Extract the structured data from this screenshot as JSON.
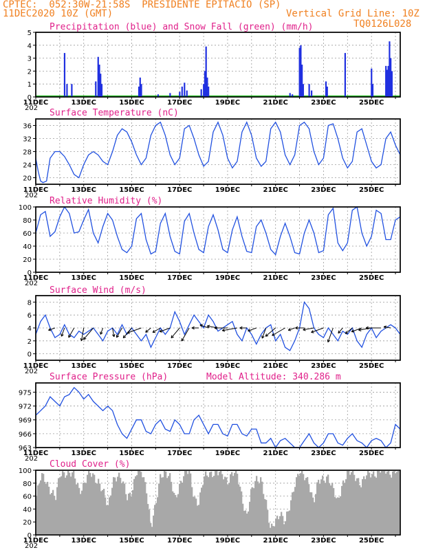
{
  "header": {
    "left1": "CPTEC:  052:30W-21:58S  PRESIDENTE EPITACIO (SP)",
    "left2": "11DEC2020 10Z (GMT)",
    "right2": "Vertical Grid Line: 10Z",
    "right3": "TQ0126L028"
  },
  "x_labels": [
    "11DEC",
    "13DEC",
    "15DEC",
    "17DEC",
    "19DEC",
    "21DEC",
    "23DEC",
    "25DEC"
  ],
  "year_label": "202",
  "colors": {
    "precip": "#2030e0",
    "snow": "#00b000",
    "line": "#2050e0",
    "cloud": "#a8a8a8",
    "title": "#e0208a",
    "header": "#f08020"
  },
  "chart_data": [
    {
      "type": "bar",
      "title": "Precipitation (blue) and Snow Fall (green) (mm/h)",
      "ylim": [
        0,
        5
      ],
      "yticks": [
        0,
        1,
        2,
        3,
        4,
        5
      ],
      "series": [
        {
          "name": "Precipitation",
          "values": [
            {
              "t": 1.2,
              "v": 3.4
            },
            {
              "t": 1.3,
              "v": 1.0
            },
            {
              "t": 1.5,
              "v": 1.0
            },
            {
              "t": 2.5,
              "v": 1.2
            },
            {
              "t": 2.6,
              "v": 3.1
            },
            {
              "t": 2.65,
              "v": 2.5
            },
            {
              "t": 2.7,
              "v": 1.8
            },
            {
              "t": 2.75,
              "v": 1.0
            },
            {
              "t": 4.3,
              "v": 0.8
            },
            {
              "t": 4.35,
              "v": 1.5
            },
            {
              "t": 4.4,
              "v": 1.0
            },
            {
              "t": 5.1,
              "v": 0.2
            },
            {
              "t": 5.6,
              "v": 0.3
            },
            {
              "t": 6.0,
              "v": 0.4
            },
            {
              "t": 6.1,
              "v": 0.8
            },
            {
              "t": 6.2,
              "v": 1.1
            },
            {
              "t": 6.3,
              "v": 0.5
            },
            {
              "t": 6.9,
              "v": 0.6
            },
            {
              "t": 7.0,
              "v": 1.0
            },
            {
              "t": 7.05,
              "v": 2.0
            },
            {
              "t": 7.1,
              "v": 3.9
            },
            {
              "t": 7.15,
              "v": 1.5
            },
            {
              "t": 7.2,
              "v": 0.8
            },
            {
              "t": 10.6,
              "v": 0.3
            },
            {
              "t": 10.7,
              "v": 0.2
            },
            {
              "t": 11.0,
              "v": 3.8
            },
            {
              "t": 11.05,
              "v": 4.0
            },
            {
              "t": 11.1,
              "v": 2.5
            },
            {
              "t": 11.15,
              "v": 1.0
            },
            {
              "t": 11.4,
              "v": 1.0
            },
            {
              "t": 11.5,
              "v": 0.5
            },
            {
              "t": 12.1,
              "v": 1.2
            },
            {
              "t": 12.15,
              "v": 0.8
            },
            {
              "t": 12.9,
              "v": 3.4
            },
            {
              "t": 14.0,
              "v": 2.2
            },
            {
              "t": 14.05,
              "v": 1.0
            },
            {
              "t": 14.6,
              "v": 2.4
            },
            {
              "t": 14.65,
              "v": 2.1
            },
            {
              "t": 14.7,
              "v": 2.4
            },
            {
              "t": 14.75,
              "v": 4.3
            },
            {
              "t": 14.8,
              "v": 3.0
            },
            {
              "t": 14.85,
              "v": 2.0
            }
          ]
        },
        {
          "name": "Snow Fall",
          "values": []
        }
      ]
    },
    {
      "type": "line",
      "title": "Surface Temperature (nC)",
      "ylim": [
        18,
        38
      ],
      "yticks": [
        20,
        24,
        28,
        32,
        36
      ],
      "x": [
        0,
        0.1,
        0.2,
        0.3,
        0.45,
        0.6,
        0.8,
        1.0,
        1.2,
        1.4,
        1.6,
        1.8,
        2.0,
        2.2,
        2.4,
        2.6,
        2.8,
        3.0,
        3.2,
        3.4,
        3.6,
        3.8,
        4.0,
        4.2,
        4.4,
        4.6,
        4.8,
        5.0,
        5.2,
        5.4,
        5.6,
        5.8,
        6.0,
        6.2,
        6.4,
        6.6,
        6.8,
        7.0,
        7.2,
        7.4,
        7.6,
        7.8,
        8.0,
        8.2,
        8.4,
        8.6,
        8.8,
        9.0,
        9.2,
        9.4,
        9.6,
        9.8,
        10.0,
        10.2,
        10.4,
        10.6,
        10.8,
        11.0,
        11.2,
        11.4,
        11.6,
        11.8,
        12.0,
        12.2,
        12.4,
        12.6,
        12.8,
        13.0,
        13.2,
        13.4,
        13.6,
        13.8,
        14.0,
        14.2,
        14.4,
        14.6,
        14.8,
        15.0,
        15.2
      ],
      "values": [
        26,
        22,
        19,
        18.5,
        19,
        26,
        28,
        28,
        26.5,
        24,
        21,
        20,
        24,
        27,
        28,
        27,
        25,
        24,
        28,
        33,
        35,
        34,
        31,
        27,
        24,
        26,
        33,
        36,
        37,
        33,
        27,
        24,
        26,
        35,
        36,
        32,
        27,
        23.5,
        25,
        34,
        37,
        33,
        26,
        23,
        25,
        34,
        37,
        33,
        26,
        23.5,
        25,
        35,
        37,
        34,
        27,
        24,
        27,
        36,
        37,
        35,
        28,
        24,
        26,
        36,
        36.5,
        32,
        26,
        23,
        25,
        34,
        35,
        30,
        25,
        23,
        24,
        32,
        34,
        30,
        27
      ],
      "xlabel_ticks": [
        "11DEC",
        "13DEC",
        "15DEC",
        "17DEC",
        "19DEC",
        "21DEC",
        "23DEC",
        "25DEC"
      ]
    },
    {
      "type": "line",
      "title": "Relative Humidity (%)",
      "ylim": [
        0,
        100
      ],
      "yticks": [
        0,
        20,
        40,
        60,
        80,
        100
      ],
      "x": [
        0,
        0.2,
        0.4,
        0.6,
        0.8,
        1.0,
        1.2,
        1.4,
        1.6,
        1.8,
        2.0,
        2.2,
        2.4,
        2.6,
        2.8,
        3.0,
        3.2,
        3.4,
        3.6,
        3.8,
        4.0,
        4.2,
        4.4,
        4.6,
        4.8,
        5.0,
        5.2,
        5.4,
        5.6,
        5.8,
        6.0,
        6.2,
        6.4,
        6.6,
        6.8,
        7.0,
        7.2,
        7.4,
        7.6,
        7.8,
        8.0,
        8.2,
        8.4,
        8.6,
        8.8,
        9.0,
        9.2,
        9.4,
        9.6,
        9.8,
        10.0,
        10.2,
        10.4,
        10.6,
        10.8,
        11.0,
        11.2,
        11.4,
        11.6,
        11.8,
        12.0,
        12.2,
        12.4,
        12.6,
        12.8,
        13.0,
        13.2,
        13.4,
        13.6,
        13.8,
        14.0,
        14.2,
        14.4,
        14.6,
        14.8,
        15.0,
        15.2
      ],
      "values": [
        60,
        88,
        93,
        55,
        62,
        85,
        100,
        90,
        60,
        62,
        80,
        96,
        60,
        45,
        70,
        90,
        80,
        55,
        35,
        30,
        40,
        82,
        90,
        50,
        28,
        32,
        75,
        90,
        55,
        32,
        28,
        78,
        90,
        60,
        35,
        30,
        70,
        88,
        65,
        35,
        30,
        65,
        85,
        55,
        32,
        30,
        70,
        80,
        60,
        35,
        27,
        55,
        75,
        55,
        30,
        28,
        60,
        80,
        60,
        30,
        33,
        88,
        98,
        45,
        33,
        45,
        95,
        100,
        60,
        40,
        55,
        95,
        90,
        50,
        50,
        80,
        85
      ],
      "xlabel_ticks": [
        "11DEC",
        "13DEC",
        "15DEC",
        "17DEC",
        "19DEC",
        "21DEC",
        "23DEC",
        "25DEC"
      ]
    },
    {
      "type": "line",
      "title": "Surface Wind (m/s)",
      "ylim": [
        -1,
        9
      ],
      "yticks": [
        0,
        2,
        4,
        6,
        8
      ],
      "x": [
        0,
        0.2,
        0.4,
        0.6,
        0.8,
        1.0,
        1.2,
        1.4,
        1.6,
        1.8,
        2.0,
        2.2,
        2.4,
        2.6,
        2.8,
        3.0,
        3.2,
        3.4,
        3.6,
        3.8,
        4.0,
        4.2,
        4.4,
        4.6,
        4.8,
        5.0,
        5.2,
        5.4,
        5.6,
        5.8,
        6.0,
        6.2,
        6.4,
        6.6,
        6.8,
        7.0,
        7.2,
        7.4,
        7.6,
        7.8,
        8.0,
        8.2,
        8.4,
        8.6,
        8.8,
        9.0,
        9.2,
        9.4,
        9.6,
        9.8,
        10.0,
        10.2,
        10.4,
        10.6,
        10.8,
        11.0,
        11.2,
        11.4,
        11.6,
        11.8,
        12.0,
        12.2,
        12.4,
        12.6,
        12.8,
        13.0,
        13.2,
        13.4,
        13.6,
        13.8,
        14.0,
        14.2,
        14.4,
        14.6,
        14.8,
        15.0,
        15.2
      ],
      "values": [
        3,
        5,
        6,
        4,
        2.5,
        3,
        4.5,
        3,
        2.5,
        3.5,
        3,
        3.5,
        4,
        3,
        2,
        3.5,
        4,
        3,
        4.5,
        3,
        4,
        3,
        2,
        3,
        1,
        2.5,
        4,
        3,
        4,
        6.5,
        5,
        3,
        4.5,
        6,
        5,
        4,
        6,
        5,
        3.5,
        4,
        4.5,
        5,
        3,
        2,
        4,
        3,
        1.5,
        3,
        4,
        4.5,
        2,
        3,
        1,
        0.5,
        2,
        4,
        8,
        7,
        4,
        3,
        2.5,
        4,
        3,
        2,
        3.5,
        3,
        4,
        2,
        1,
        3,
        4,
        2.5,
        3.5,
        4,
        4.5,
        4,
        3
      ],
      "xlabel_ticks": [
        "11DEC",
        "13DEC",
        "15DEC",
        "17DEC",
        "19DEC",
        "21DEC",
        "23DEC",
        "25DEC"
      ]
    },
    {
      "type": "line",
      "title": "Surface Pressure (hPa)",
      "annotation": "Model Altitude: 340.286 m",
      "ylim": [
        963,
        977
      ],
      "yticks": [
        963,
        966,
        969,
        972,
        975
      ],
      "x": [
        0,
        0.2,
        0.4,
        0.6,
        0.8,
        1.0,
        1.2,
        1.4,
        1.6,
        1.8,
        2.0,
        2.2,
        2.4,
        2.6,
        2.8,
        3.0,
        3.2,
        3.4,
        3.6,
        3.8,
        4.0,
        4.2,
        4.4,
        4.6,
        4.8,
        5.0,
        5.2,
        5.4,
        5.6,
        5.8,
        6.0,
        6.2,
        6.4,
        6.6,
        6.8,
        7.0,
        7.2,
        7.4,
        7.6,
        7.8,
        8.0,
        8.2,
        8.4,
        8.6,
        8.8,
        9.0,
        9.2,
        9.4,
        9.6,
        9.8,
        10.0,
        10.2,
        10.4,
        10.6,
        10.8,
        11.0,
        11.2,
        11.4,
        11.6,
        11.8,
        12.0,
        12.2,
        12.4,
        12.6,
        12.8,
        13.0,
        13.2,
        13.4,
        13.6,
        13.8,
        14.0,
        14.2,
        14.4,
        14.6,
        14.8,
        15.0,
        15.2
      ],
      "values": [
        970,
        971,
        972,
        974,
        973,
        972,
        974,
        974.5,
        976,
        975,
        973.5,
        974.5,
        973,
        972,
        971,
        972,
        971,
        968,
        966,
        965,
        967,
        969,
        969,
        966.5,
        966,
        968,
        969,
        967,
        966.5,
        969,
        968,
        966,
        966,
        969,
        970,
        968,
        966,
        968,
        968,
        966,
        965.5,
        968,
        968,
        966,
        965.5,
        967,
        967,
        964,
        964,
        965,
        963,
        964.5,
        965,
        964,
        963,
        963,
        964.5,
        966,
        964,
        963,
        964,
        966,
        966,
        964,
        963.5,
        965,
        966,
        964.5,
        964,
        963,
        964.5,
        965,
        964.5,
        963,
        964,
        968,
        967
      ],
      "xlabel_ticks": [
        "11DEC",
        "13DEC",
        "15DEC",
        "17DEC",
        "19DEC",
        "21DEC",
        "23DEC",
        "25DEC"
      ]
    },
    {
      "type": "bar",
      "title": "Cloud Cover (%)",
      "ylim": [
        0,
        100
      ],
      "yticks": [
        0,
        20,
        40,
        60,
        80,
        100
      ],
      "xlabel_ticks": [
        "11DEC",
        "13DEC",
        "15DEC",
        "17DEC",
        "19DEC",
        "21DEC",
        "23DEC",
        "25DEC"
      ],
      "profile": [
        [
          0.0,
          60
        ],
        [
          0.2,
          90
        ],
        [
          0.4,
          85
        ],
        [
          0.6,
          70
        ],
        [
          0.8,
          55
        ],
        [
          1.0,
          95
        ],
        [
          1.2,
          98
        ],
        [
          1.4,
          95
        ],
        [
          1.6,
          88
        ],
        [
          1.8,
          70
        ],
        [
          2.0,
          80
        ],
        [
          2.2,
          95
        ],
        [
          2.4,
          90
        ],
        [
          2.6,
          85
        ],
        [
          2.8,
          65
        ],
        [
          3.0,
          40
        ],
        [
          3.2,
          88
        ],
        [
          3.4,
          92
        ],
        [
          3.6,
          80
        ],
        [
          3.8,
          60
        ],
        [
          4.0,
          70
        ],
        [
          4.2,
          95
        ],
        [
          4.4,
          98
        ],
        [
          4.6,
          75
        ],
        [
          4.8,
          10
        ],
        [
          5.0,
          45
        ],
        [
          5.2,
          96
        ],
        [
          5.4,
          98
        ],
        [
          5.6,
          85
        ],
        [
          5.8,
          55
        ],
        [
          6.0,
          80
        ],
        [
          6.2,
          95
        ],
        [
          6.4,
          97
        ],
        [
          6.6,
          60
        ],
        [
          6.8,
          50
        ],
        [
          7.0,
          85
        ],
        [
          7.2,
          96
        ],
        [
          7.4,
          98
        ],
        [
          7.6,
          95
        ],
        [
          7.8,
          92
        ],
        [
          8.0,
          85
        ],
        [
          8.2,
          96
        ],
        [
          8.4,
          92
        ],
        [
          8.6,
          60
        ],
        [
          8.8,
          30
        ],
        [
          9.0,
          65
        ],
        [
          9.2,
          85
        ],
        [
          9.4,
          90
        ],
        [
          9.6,
          50
        ],
        [
          9.8,
          5
        ],
        [
          10.0,
          25
        ],
        [
          10.2,
          35
        ],
        [
          10.4,
          15
        ],
        [
          10.6,
          45
        ],
        [
          10.8,
          80
        ],
        [
          11.0,
          95
        ],
        [
          11.2,
          90
        ],
        [
          11.4,
          85
        ],
        [
          11.6,
          50
        ],
        [
          11.8,
          80
        ],
        [
          12.0,
          88
        ],
        [
          12.2,
          92
        ],
        [
          12.4,
          70
        ],
        [
          12.6,
          50
        ],
        [
          12.8,
          80
        ],
        [
          13.0,
          94
        ],
        [
          13.2,
          95
        ],
        [
          13.4,
          90
        ],
        [
          13.6,
          80
        ],
        [
          13.8,
          90
        ],
        [
          14.0,
          95
        ],
        [
          14.2,
          97
        ],
        [
          14.4,
          99
        ],
        [
          14.6,
          99
        ],
        [
          14.8,
          98
        ],
        [
          15.0,
          99
        ],
        [
          15.2,
          99
        ]
      ]
    }
  ]
}
